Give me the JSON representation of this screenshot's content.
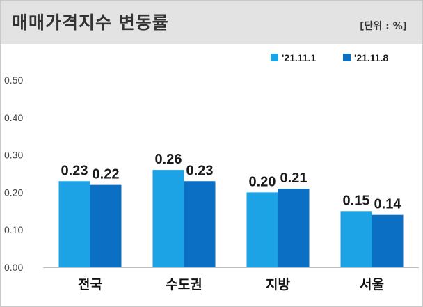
{
  "header": {
    "title": "매매가격지수 변동률",
    "unit": "[단위 : %]"
  },
  "colors": {
    "series1": "#1ba3e6",
    "series2": "#0b6fc4"
  },
  "chart_data": {
    "type": "bar",
    "categories": [
      "전국",
      "수도권",
      "지방",
      "서울"
    ],
    "series": [
      {
        "name": "'21.11.1",
        "values": [
          0.23,
          0.26,
          0.2,
          0.15
        ]
      },
      {
        "name": "'21.11.8",
        "values": [
          0.22,
          0.23,
          0.21,
          0.14
        ]
      }
    ],
    "ylim": [
      0,
      0.5
    ],
    "yticks": [
      "0.00",
      "0.10",
      "0.20",
      "0.30",
      "0.40",
      "0.50"
    ],
    "legend": "top-right",
    "grid": false
  }
}
